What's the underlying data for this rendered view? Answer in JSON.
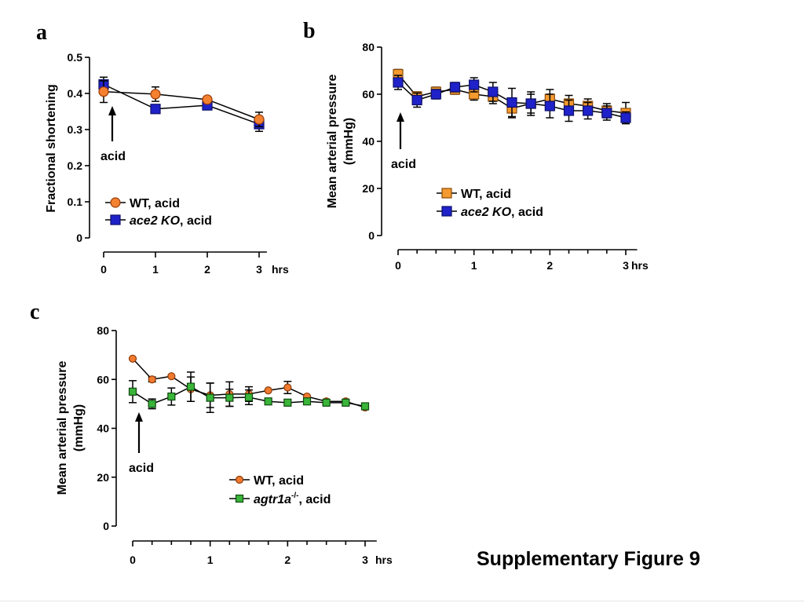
{
  "figure_title": "Supplementary Figure 9",
  "chart_data": [
    {
      "id": "a",
      "type": "line",
      "panel_label": "a",
      "ylabel": "Fractional shortening",
      "xlabel": "",
      "x_unit": "hrs",
      "ylim": [
        0,
        0.5
      ],
      "xlim": [
        0,
        3
      ],
      "yticks": [
        "0",
        "0.1",
        "0.2",
        "0.3",
        "0.4",
        "0.5"
      ],
      "xticks": [
        "0",
        "1",
        "2",
        "3"
      ],
      "annotation": "acid",
      "legend_position": "bottom-left",
      "series": [
        {
          "name_main": "WT",
          "name_italic": "",
          "name_sup": "",
          "name_rest": ", acid",
          "marker": "circle",
          "fill": "#F4812F",
          "stroke": "#9A3B08",
          "draw_order": 1,
          "x": [
            0,
            1,
            2,
            3
          ],
          "y": [
            0.405,
            0.398,
            0.383,
            0.328
          ],
          "err": [
            0.03,
            0.02,
            0.008,
            0.02
          ]
        },
        {
          "name_main": "",
          "name_italic": "ace2 KO",
          "name_sup": "",
          "name_rest": ", acid",
          "marker": "square",
          "fill": "#1F22C8",
          "stroke": "#0D0F6A",
          "draw_order": 0,
          "x": [
            0,
            1,
            2,
            3
          ],
          "y": [
            0.425,
            0.357,
            0.367,
            0.315
          ],
          "err": [
            0.02,
            0.012,
            0.008,
            0.02
          ]
        }
      ]
    },
    {
      "id": "b",
      "type": "line",
      "panel_label": "b",
      "ylabel_lines": [
        "Mean arterial pressure",
        "(mmHg)"
      ],
      "xlabel": "",
      "x_unit": "hrs",
      "ylim": [
        0,
        80
      ],
      "xlim": [
        0,
        3
      ],
      "yticks": [
        "0",
        "20",
        "40",
        "60",
        "80"
      ],
      "xticks": [
        "0",
        "1",
        "2",
        "3"
      ],
      "annotation": "acid",
      "legend_position": "bottom-center",
      "series": [
        {
          "name_main": "WT",
          "name_italic": "",
          "name_sup": "",
          "name_rest": ", acid",
          "marker": "square",
          "fill": "#F59A2E",
          "stroke": "#8A4A05",
          "draw_order": 0,
          "x": [
            0,
            0.25,
            0.5,
            0.75,
            1,
            1.25,
            1.5,
            1.75,
            2,
            2.25,
            2.5,
            2.75,
            3
          ],
          "y": [
            68.5,
            59,
            61,
            62,
            60,
            59,
            54,
            56,
            58,
            56,
            55,
            53,
            52
          ],
          "err": [
            2,
            2,
            2,
            2,
            2.5,
            3,
            4,
            4,
            4,
            3.5,
            3,
            3,
            4.5
          ]
        },
        {
          "name_main": "",
          "name_italic": "ace2 KO",
          "name_sup": "",
          "name_rest": ", acid",
          "marker": "square",
          "fill": "#1F22C8",
          "stroke": "#0D0F6A",
          "draw_order": 1,
          "x": [
            0,
            0.25,
            0.5,
            0.75,
            1,
            1.25,
            1.5,
            1.75,
            2,
            2.25,
            2.5,
            2.75,
            3
          ],
          "y": [
            65,
            57.5,
            60,
            63,
            64,
            61,
            56.5,
            56,
            55,
            53,
            53,
            52,
            50
          ],
          "err": [
            3,
            3,
            2,
            2,
            3,
            4,
            6,
            5,
            5,
            4.5,
            3.5,
            3,
            2.5
          ]
        }
      ]
    },
    {
      "id": "c",
      "type": "line",
      "panel_label": "c",
      "ylabel_lines": [
        "Mean arterial pressure",
        "(mmHg)"
      ],
      "xlabel": "",
      "x_unit": "hrs",
      "ylim": [
        0,
        80
      ],
      "xlim": [
        0,
        3
      ],
      "yticks": [
        "0",
        "20",
        "40",
        "60",
        "80"
      ],
      "xticks": [
        "0",
        "1",
        "2",
        "3"
      ],
      "annotation": "acid",
      "legend_position": "bottom-right",
      "series": [
        {
          "name_main": "WT",
          "name_italic": "",
          "name_sup": "",
          "name_rest": ", acid",
          "marker": "circle",
          "fill": "#F07A2F",
          "stroke": "#8C3A08",
          "draw_order": 0,
          "x": [
            0,
            0.25,
            0.5,
            0.75,
            1,
            1.25,
            1.5,
            1.75,
            2,
            2.25,
            2.5,
            2.75,
            3
          ],
          "y": [
            68.5,
            60,
            61.3,
            56,
            53.5,
            54,
            54,
            55.5,
            56.7,
            53,
            51,
            51,
            48.5
          ],
          "err": [
            0,
            1,
            0,
            5,
            5,
            5,
            3,
            0,
            2.5,
            0,
            0,
            0,
            0
          ]
        },
        {
          "name_main": "",
          "name_italic": "agtr1a",
          "name_sup": "-/-",
          "name_rest": ", acid",
          "marker": "square",
          "fill": "#3AB53A",
          "stroke": "#0E4A0E",
          "draw_order": 1,
          "x": [
            0,
            0.25,
            0.5,
            0.75,
            1,
            1.25,
            1.5,
            1.75,
            2,
            2.25,
            2.5,
            2.75,
            3
          ],
          "y": [
            55,
            50,
            53,
            57,
            52.5,
            52.5,
            52.7,
            51,
            50.5,
            51,
            50.5,
            50.5,
            49
          ],
          "err": [
            4.5,
            2,
            3.5,
            6,
            6,
            3.5,
            3,
            0,
            0,
            0,
            0,
            0,
            0
          ]
        }
      ]
    }
  ]
}
